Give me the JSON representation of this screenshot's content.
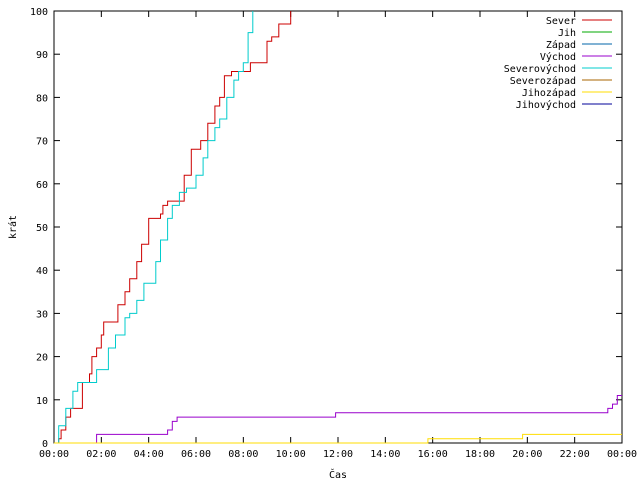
{
  "chart_data": {
    "type": "line",
    "xlabel": "Čas",
    "ylabel": "krát",
    "xlim": [
      0,
      24
    ],
    "ylim": [
      0,
      100
    ],
    "x_ticks": [
      {
        "v": 0,
        "label": "00:00"
      },
      {
        "v": 2,
        "label": "02:00"
      },
      {
        "v": 4,
        "label": "04:00"
      },
      {
        "v": 6,
        "label": "06:00"
      },
      {
        "v": 8,
        "label": "08:00"
      },
      {
        "v": 10,
        "label": "10:00"
      },
      {
        "v": 12,
        "label": "12:00"
      },
      {
        "v": 14,
        "label": "14:00"
      },
      {
        "v": 16,
        "label": "16:00"
      },
      {
        "v": 18,
        "label": "18:00"
      },
      {
        "v": 20,
        "label": "20:00"
      },
      {
        "v": 22,
        "label": "22:00"
      },
      {
        "v": 24,
        "label": "00:00"
      }
    ],
    "y_ticks": [
      {
        "v": 0,
        "label": "0"
      },
      {
        "v": 10,
        "label": "10"
      },
      {
        "v": 20,
        "label": "20"
      },
      {
        "v": 30,
        "label": "30"
      },
      {
        "v": 40,
        "label": "40"
      },
      {
        "v": 50,
        "label": "50"
      },
      {
        "v": 60,
        "label": "60"
      },
      {
        "v": 70,
        "label": "70"
      },
      {
        "v": 80,
        "label": "80"
      },
      {
        "v": 90,
        "label": "90"
      },
      {
        "v": 100,
        "label": "100"
      }
    ],
    "legend_position": "top-right",
    "series": [
      {
        "name": "Sever",
        "color": "#cc0000",
        "x": [
          0,
          0.2,
          0.3,
          0.5,
          0.7,
          1.0,
          1.2,
          1.5,
          1.6,
          1.8,
          2.0,
          2.1,
          2.5,
          2.7,
          3.0,
          3.2,
          3.5,
          3.7,
          4.0,
          4.3,
          4.5,
          4.6,
          4.8,
          5.0,
          5.2,
          5.5,
          5.8,
          6.0,
          6.2,
          6.5,
          6.8,
          7.0,
          7.2,
          7.5,
          7.8,
          8.0,
          8.3,
          8.6,
          9.0,
          9.2,
          9.5,
          10.0
        ],
        "y": [
          0,
          1,
          3,
          6,
          8,
          8,
          14,
          16,
          20,
          22,
          25,
          28,
          28,
          32,
          35,
          38,
          42,
          46,
          52,
          52,
          53,
          55,
          56,
          56,
          56,
          62,
          68,
          68,
          70,
          74,
          78,
          80,
          85,
          86,
          86,
          86,
          88,
          88,
          93,
          94,
          97,
          100
        ]
      },
      {
        "name": "Jih",
        "color": "#00aa00",
        "x": [],
        "y": []
      },
      {
        "name": "Západ",
        "color": "#0066aa",
        "x": [],
        "y": []
      },
      {
        "name": "Východ",
        "color": "#9900cc",
        "x": [
          0,
          1.75,
          1.8,
          4.6,
          4.8,
          5.0,
          5.2,
          11.7,
          11.9,
          23.2,
          23.4,
          23.6,
          23.8,
          24
        ],
        "y": [
          0,
          0,
          2,
          2,
          3,
          5,
          6,
          6,
          7,
          7,
          8,
          9,
          11,
          11
        ]
      },
      {
        "name": "Severovýchod",
        "color": "#00cccc",
        "x": [
          0,
          0.2,
          0.5,
          0.8,
          1.0,
          1.5,
          1.8,
          2.0,
          2.3,
          2.6,
          3.0,
          3.2,
          3.5,
          3.8,
          4.0,
          4.3,
          4.5,
          4.8,
          5.0,
          5.3,
          5.6,
          5.8,
          6.0,
          6.3,
          6.5,
          6.8,
          7.0,
          7.3,
          7.6,
          7.8,
          8.0,
          8.2,
          8.4
        ],
        "y": [
          0,
          4,
          8,
          12,
          14,
          14,
          17,
          17,
          22,
          25,
          29,
          30,
          33,
          37,
          37,
          42,
          47,
          52,
          55,
          58,
          59,
          59,
          62,
          66,
          70,
          73,
          75,
          80,
          84,
          86,
          88,
          95,
          100
        ]
      },
      {
        "name": "Severozápad",
        "color": "#aa6600",
        "x": [],
        "y": []
      },
      {
        "name": "Jihozápad",
        "color": "#ffdd00",
        "x": [
          0,
          15.6,
          15.8,
          19.6,
          19.8,
          24
        ],
        "y": [
          0,
          0,
          1,
          1,
          2,
          2
        ]
      },
      {
        "name": "Jihovýchod",
        "color": "#000099",
        "x": [],
        "y": []
      }
    ]
  }
}
